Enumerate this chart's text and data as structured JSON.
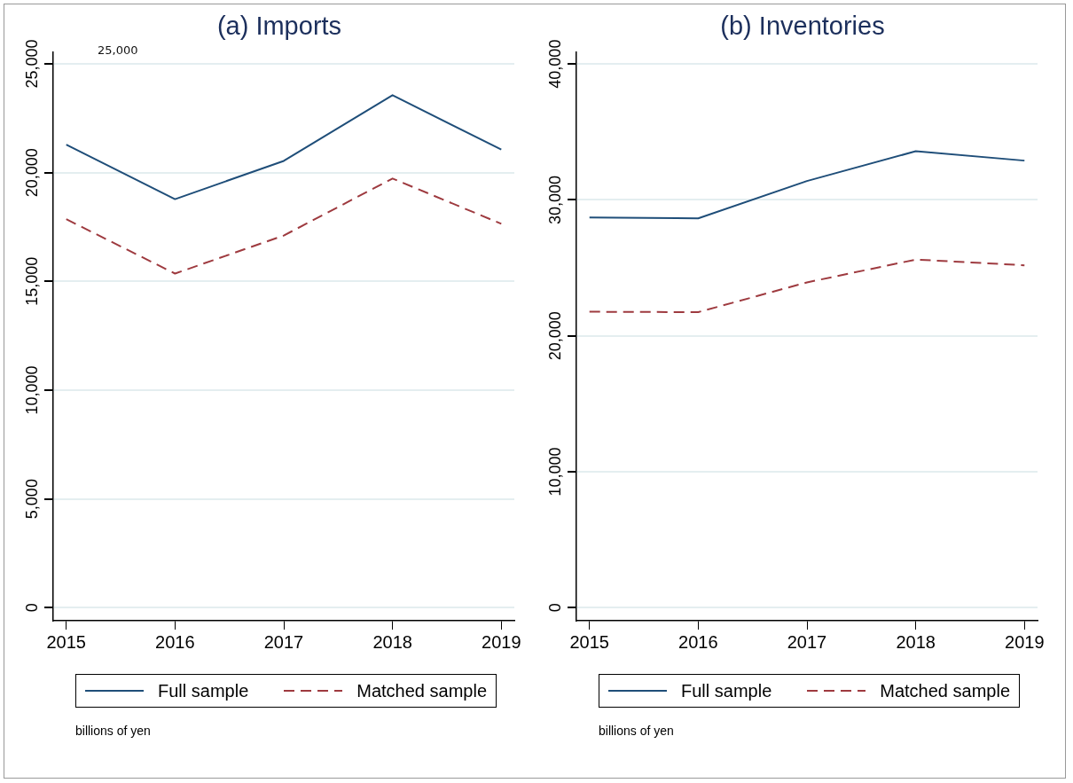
{
  "chart_data": [
    {
      "type": "line",
      "title": "(a) Imports",
      "x": [
        2015,
        2016,
        2017,
        2018,
        2019
      ],
      "xlim": [
        2014.88,
        2019.12
      ],
      "xticks": [
        2015,
        2016,
        2017,
        2018,
        2019
      ],
      "ylim": [
        -600,
        25540
      ],
      "yticks": [
        {
          "value": 0,
          "label": "0"
        },
        {
          "value": 5000,
          "label": "5,000"
        },
        {
          "value": 10000,
          "label": "10,000"
        },
        {
          "value": 15000,
          "label": "15,000"
        },
        {
          "value": 20000,
          "label": "20,000"
        },
        {
          "value": 25000,
          "label": "25,000"
        }
      ],
      "grid": "y",
      "legend": "bottom",
      "annotations": [
        "25,000",
        "billions of yen"
      ],
      "series": [
        {
          "name": "Full sample",
          "color": "#1f4e79",
          "line_style": "solid",
          "values": [
            21290,
            18780,
            20540,
            23560,
            21060
          ]
        },
        {
          "name": "Matched sample",
          "color": "#9e3a3f",
          "line_style": "dashed",
          "values": [
            17860,
            15360,
            17110,
            19730,
            17650
          ]
        }
      ]
    },
    {
      "type": "line",
      "title": "(b) Inventories",
      "x": [
        2015,
        2016,
        2017,
        2018,
        2019
      ],
      "xlim": [
        2014.88,
        2019.12
      ],
      "xticks": [
        2015,
        2016,
        2017,
        2018,
        2019
      ],
      "ylim": [
        -960,
        40870
      ],
      "yticks": [
        {
          "value": 0,
          "label": "0"
        },
        {
          "value": 10000,
          "label": "10,000"
        },
        {
          "value": 20000,
          "label": "20,000"
        },
        {
          "value": 30000,
          "label": "30,000"
        },
        {
          "value": 40000,
          "label": "40,000"
        }
      ],
      "grid": "y",
      "legend": "bottom",
      "annotations": [
        "billions of yen"
      ],
      "series": [
        {
          "name": "Full sample",
          "color": "#1f4e79",
          "line_style": "solid",
          "values": [
            28700,
            28640,
            31390,
            33580,
            32890
          ]
        },
        {
          "name": "Matched sample",
          "color": "#9e3a3f",
          "line_style": "dashed",
          "values": [
            21770,
            21740,
            23930,
            25610,
            25190
          ]
        }
      ]
    }
  ]
}
